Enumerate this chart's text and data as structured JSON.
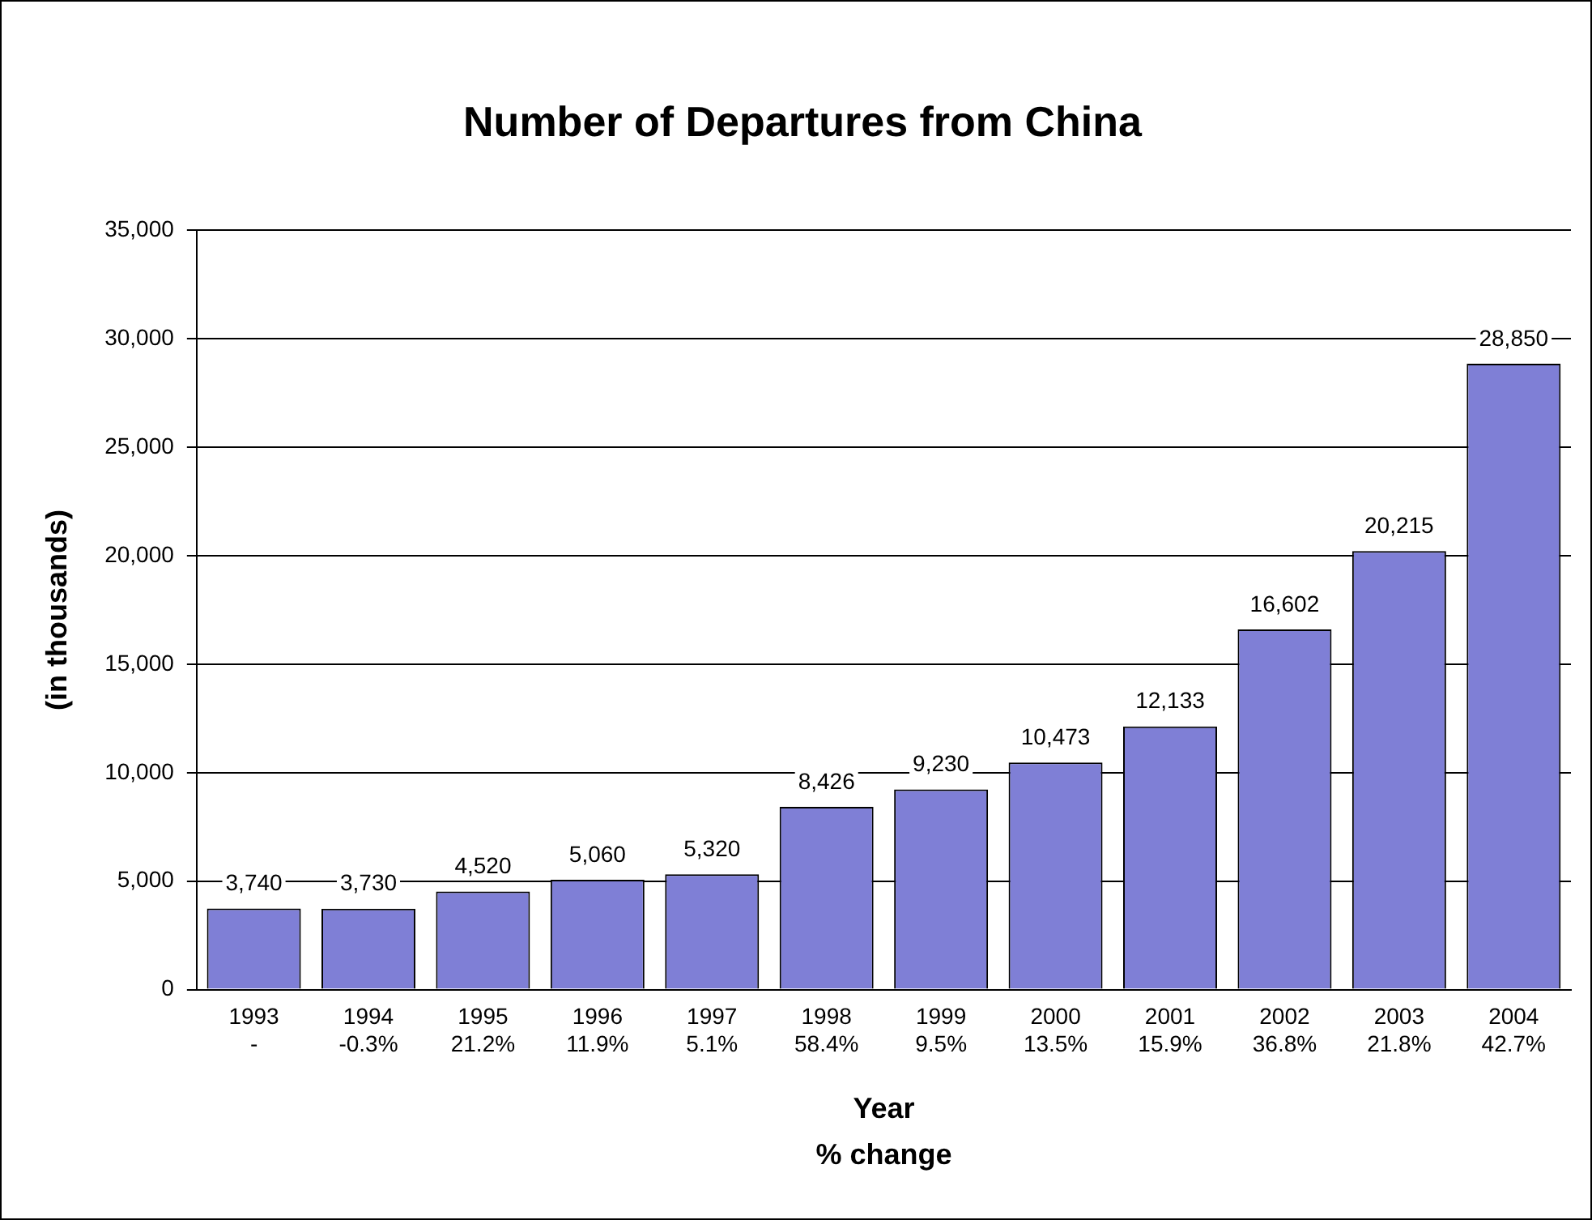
{
  "chart_data": {
    "type": "bar",
    "title": "Number of Departures from China",
    "xlabel": "Year\n% change",
    "ylabel": "(in thousands)",
    "categories": [
      "1993\n-",
      "1994\n-0.3%",
      "1995\n21.2%",
      "1996\n11.9%",
      "1997\n5.1%",
      "1998\n58.4%",
      "1999\n9.5%",
      "2000\n13.5%",
      "2001\n15.9%",
      "2002\n36.8%",
      "2003\n21.8%",
      "2004\n42.7%"
    ],
    "values": [
      3740,
      3730,
      4520,
      5060,
      5320,
      8426,
      9230,
      10473,
      12133,
      16602,
      20215,
      28850
    ],
    "color": "#7f7fd6",
    "value_labels": [
      "3,740",
      "3,730",
      "4,520",
      "5,060",
      "5,320",
      "8,426",
      "9,230",
      "10,473",
      "12,133",
      "16,602",
      "20,215",
      "28,850"
    ],
    "ylim": [
      0,
      35000
    ],
    "yticks": [
      {
        "value": 0,
        "label": "0"
      },
      {
        "value": 5000,
        "label": "5,000"
      },
      {
        "value": 10000,
        "label": "10,000"
      },
      {
        "value": 15000,
        "label": "15,000"
      },
      {
        "value": 20000,
        "label": "20,000"
      },
      {
        "value": 25000,
        "label": "25,000"
      },
      {
        "value": 30000,
        "label": "30,000"
      },
      {
        "value": 35000,
        "label": "35,000"
      }
    ],
    "grid": "y",
    "legend": false
  }
}
